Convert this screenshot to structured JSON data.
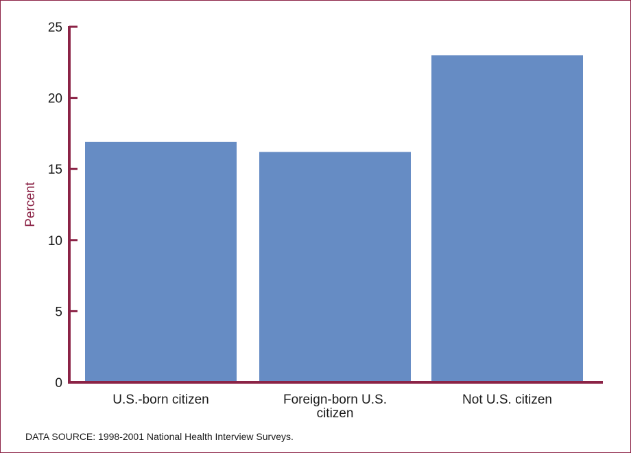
{
  "chart_data": {
    "type": "bar",
    "title": "",
    "xlabel": "",
    "ylabel": "Percent",
    "ylim": [
      0,
      25
    ],
    "yticks": [
      0,
      5,
      10,
      15,
      20,
      25
    ],
    "categories": [
      "U.S.-born citizen",
      "Foreign-born U.S. citizen",
      "Not U.S. citizen"
    ],
    "category_lines": [
      [
        "U.S.-born citizen"
      ],
      [
        "Foreign-born U.S.",
        "citizen"
      ],
      [
        "Not U.S. citizen"
      ]
    ],
    "values": [
      16.9,
      16.2,
      23.0
    ],
    "grid": false,
    "legend": "none"
  },
  "colors": {
    "bar": "#668cc4",
    "axis": "#8b2346",
    "text": "#1a1a1a"
  },
  "source": "DATA SOURCE: 1998-2001 National Health Interview Surveys."
}
